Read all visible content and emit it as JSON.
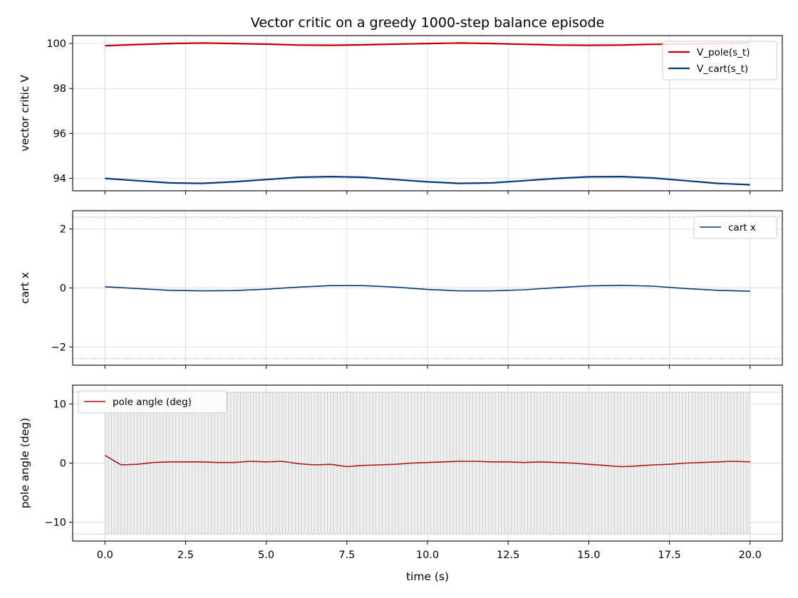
{
  "colors": {
    "pole": "#c00000",
    "cart": "#003a7a",
    "angle": "#b01515",
    "shade": "#c8c8c8",
    "grid": "#dddddd",
    "limit": "#777777"
  },
  "chart_data": [
    {
      "type": "line",
      "title": "Vector critic on a greedy 1000-step balance episode",
      "xlabel": "",
      "ylabel": "vector critic V",
      "xlim": [
        -1.0,
        21.0
      ],
      "ylim": [
        93.45,
        100.35
      ],
      "yticks": [
        94,
        96,
        98,
        100
      ],
      "ytick_labels": [
        "94",
        "96",
        "98",
        "100"
      ],
      "grid": true,
      "legend": "top-right",
      "series": [
        {
          "name": "V_pole(s_t)",
          "color_key": "pole",
          "x": [
            0,
            1,
            2,
            3,
            4,
            5,
            6,
            7,
            8,
            9,
            10,
            11,
            12,
            13,
            14,
            15,
            16,
            17,
            18,
            19,
            20
          ],
          "y": [
            99.9,
            99.95,
            100.0,
            100.02,
            100.0,
            99.97,
            99.93,
            99.92,
            99.94,
            99.97,
            100.0,
            100.02,
            100.0,
            99.96,
            99.93,
            99.92,
            99.93,
            99.96,
            99.98,
            100.0,
            100.02
          ]
        },
        {
          "name": "V_cart(s_t)",
          "color_key": "cart",
          "x": [
            0,
            1,
            2,
            3,
            4,
            5,
            6,
            7,
            8,
            9,
            10,
            11,
            12,
            13,
            14,
            15,
            16,
            17,
            18,
            19,
            20
          ],
          "y": [
            94.0,
            93.9,
            93.8,
            93.78,
            93.85,
            93.95,
            94.05,
            94.08,
            94.05,
            93.95,
            93.85,
            93.78,
            93.8,
            93.9,
            94.0,
            94.07,
            94.08,
            94.02,
            93.9,
            93.78,
            93.72
          ]
        }
      ]
    },
    {
      "type": "line",
      "xlabel": "",
      "ylabel": "cart x",
      "xlim": [
        -1.0,
        21.0
      ],
      "ylim": [
        -2.62,
        2.62
      ],
      "yticks": [
        -2,
        0,
        2
      ],
      "ytick_labels": [
        "−2",
        "0",
        "2"
      ],
      "limits": [
        -2.4,
        2.4
      ],
      "grid": true,
      "legend": "top-right",
      "series": [
        {
          "name": "cart x",
          "color_key": "cart",
          "x": [
            0,
            1,
            2,
            3,
            4,
            5,
            6,
            7,
            8,
            9,
            10,
            11,
            12,
            13,
            14,
            15,
            16,
            17,
            18,
            19,
            20
          ],
          "y": [
            0.04,
            -0.02,
            -0.08,
            -0.1,
            -0.09,
            -0.04,
            0.03,
            0.08,
            0.08,
            0.03,
            -0.05,
            -0.1,
            -0.1,
            -0.06,
            0.01,
            0.07,
            0.09,
            0.06,
            -0.02,
            -0.08,
            -0.11
          ]
        }
      ]
    },
    {
      "type": "line",
      "xlabel": "time (s)",
      "ylabel": "pole angle (deg)",
      "xlim": [
        -1.0,
        21.0
      ],
      "ylim": [
        -13.2,
        13.2
      ],
      "xticks": [
        0,
        2.5,
        5,
        7.5,
        10,
        12.5,
        15,
        17.5,
        20
      ],
      "xtick_labels": [
        "0.0",
        "2.5",
        "5.0",
        "7.5",
        "10.0",
        "12.5",
        "15.0",
        "17.5",
        "20.0"
      ],
      "yticks": [
        -10,
        0,
        10
      ],
      "ytick_labels": [
        "−10",
        "0",
        "10"
      ],
      "limits": [
        -12,
        12
      ],
      "shaded_band": [
        -12,
        12
      ],
      "grid": true,
      "legend": "top-left",
      "series": [
        {
          "name": "pole angle (deg)",
          "color_key": "angle",
          "x": [
            0,
            0.5,
            1,
            1.5,
            2,
            2.5,
            3,
            3.5,
            4,
            4.5,
            5,
            5.5,
            6,
            6.5,
            7,
            7.5,
            8,
            8.5,
            9,
            9.5,
            10,
            10.5,
            11,
            11.5,
            12,
            12.5,
            13,
            13.5,
            14,
            14.5,
            15,
            15.5,
            16,
            16.5,
            17,
            17.5,
            18,
            18.5,
            19,
            19.5,
            20
          ],
          "y": [
            1.3,
            -0.3,
            -0.2,
            0.1,
            0.2,
            0.2,
            0.2,
            0.1,
            0.1,
            0.3,
            0.2,
            0.3,
            -0.1,
            -0.3,
            -0.2,
            -0.6,
            -0.4,
            -0.3,
            -0.2,
            0.0,
            0.1,
            0.2,
            0.3,
            0.3,
            0.2,
            0.2,
            0.1,
            0.2,
            0.1,
            0.0,
            -0.2,
            -0.4,
            -0.6,
            -0.5,
            -0.3,
            -0.2,
            0.0,
            0.1,
            0.2,
            0.3,
            0.2
          ]
        }
      ]
    }
  ]
}
